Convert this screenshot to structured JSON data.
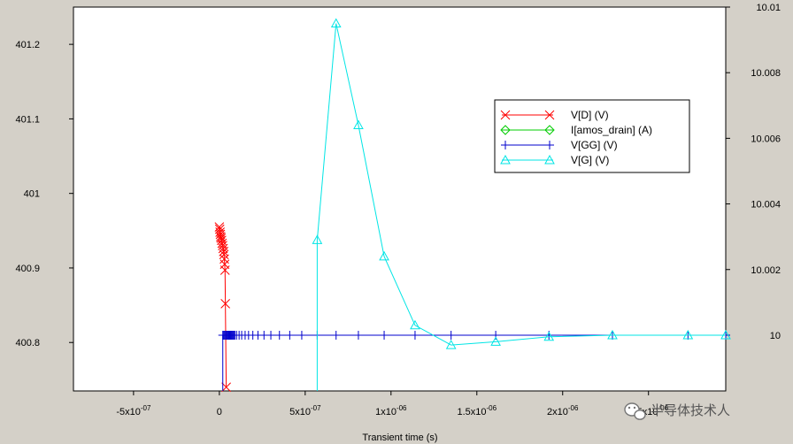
{
  "chart_data": {
    "type": "line",
    "title": "",
    "xlabel": "Transient time (s)",
    "ylabel": "",
    "xlim": [
      -8.5e-07,
      2.95e-06
    ],
    "ylim_left": [
      400.735,
      401.25
    ],
    "ylim_right": [
      9.9983,
      10.01
    ],
    "x_ticks": [
      -5e-07,
      0,
      5e-07,
      1e-06,
      1.5e-06,
      2e-06,
      2.5e-06
    ],
    "x_tick_labels": [
      {
        "mant": "-5x10",
        "exp": "-07"
      },
      {
        "mant": "0",
        "exp": ""
      },
      {
        "mant": "5x10",
        "exp": "-07"
      },
      {
        "mant": "1x10",
        "exp": "-06"
      },
      {
        "mant": "1.5x10",
        "exp": "-06"
      },
      {
        "mant": "2x10",
        "exp": "-06"
      },
      {
        "mant": "2.5x10",
        "exp": "-06"
      }
    ],
    "y_left_ticks": [
      400.8,
      400.9,
      401,
      401.1,
      401.2
    ],
    "y_left_tick_labels": [
      "400.8",
      "400.9",
      "401",
      "401.1",
      "401.2"
    ],
    "y_right_ticks": [
      10,
      10.002,
      10.004,
      10.006,
      10.008,
      10.01
    ],
    "y_right_tick_labels": [
      "10",
      "10.002",
      "10.004",
      "10.006",
      "10.008",
      "10.01"
    ],
    "grid": false,
    "legend_position": "top-right",
    "series": [
      {
        "name": "V[D] (V)",
        "color": "#ff0000",
        "marker": "x",
        "axis": "left",
        "points": [
          [
            0,
            400.955
          ],
          [
            2e-09,
            400.952
          ],
          [
            4e-09,
            400.948
          ],
          [
            6e-09,
            400.945
          ],
          [
            8e-09,
            400.942
          ],
          [
            1e-08,
            400.94
          ],
          [
            1.3e-08,
            400.937
          ],
          [
            1.6e-08,
            400.933
          ],
          [
            1.9e-08,
            400.93
          ],
          [
            2.2e-08,
            400.926
          ],
          [
            2.5e-08,
            400.922
          ],
          [
            2.7e-08,
            400.918
          ],
          [
            2.9e-08,
            400.912
          ],
          [
            3.1e-08,
            400.905
          ],
          [
            3.3e-08,
            400.897
          ],
          [
            3.5e-08,
            400.852
          ],
          [
            4e-08,
            400.74
          ]
        ]
      },
      {
        "name": "I[amos_drain] (A)",
        "color": "#00cc00",
        "marker": "diamond",
        "axis": "left",
        "points": []
      },
      {
        "name": "V[GG] (V)",
        "color": "#0000cc",
        "marker": "plus",
        "axis": "right",
        "points": [
          [
            2e-08,
            9.9983
          ],
          [
            2e-08,
            10
          ],
          [
            2.5e-08,
            10
          ],
          [
            3e-08,
            10
          ],
          [
            3.5e-08,
            10
          ],
          [
            4e-08,
            10
          ],
          [
            4.5e-08,
            10
          ],
          [
            5e-08,
            10
          ],
          [
            5.5e-08,
            10
          ],
          [
            6e-08,
            10
          ],
          [
            6.5e-08,
            10
          ],
          [
            7e-08,
            10
          ],
          [
            7.5e-08,
            10
          ],
          [
            8e-08,
            10
          ],
          [
            8.5e-08,
            10
          ],
          [
            9e-08,
            10
          ],
          [
            1e-07,
            10
          ],
          [
            1.15e-07,
            10
          ],
          [
            1.3e-07,
            10
          ],
          [
            1.5e-07,
            10
          ],
          [
            1.7e-07,
            10
          ],
          [
            1.95e-07,
            10
          ],
          [
            2.25e-07,
            10
          ],
          [
            2.6e-07,
            10
          ],
          [
            3e-07,
            10
          ],
          [
            3.5e-07,
            10
          ],
          [
            4.1e-07,
            10
          ],
          [
            4.8e-07,
            10
          ],
          [
            5.7e-07,
            10
          ],
          [
            6.8e-07,
            10
          ],
          [
            8.1e-07,
            10
          ],
          [
            9.6e-07,
            10
          ],
          [
            1.14e-06,
            10
          ],
          [
            1.35e-06,
            10
          ],
          [
            1.61e-06,
            10
          ],
          [
            1.92e-06,
            10
          ],
          [
            2.29e-06,
            10
          ],
          [
            2.73e-06,
            10
          ],
          [
            2.95e-06,
            10
          ]
        ]
      },
      {
        "name": "V[G] (V)",
        "color": "#00e5e5",
        "marker": "triangle",
        "axis": "right",
        "points": [
          [
            5.7e-07,
            9.9983
          ],
          [
            5.7e-07,
            10.0029
          ],
          [
            6.8e-07,
            10.0095
          ],
          [
            8.1e-07,
            10.0064
          ],
          [
            9.6e-07,
            10.0024
          ],
          [
            1.14e-06,
            10.0003
          ],
          [
            1.35e-06,
            9.9997
          ],
          [
            1.61e-06,
            9.9998
          ],
          [
            1.92e-06,
            9.99995
          ],
          [
            2.29e-06,
            10
          ],
          [
            2.73e-06,
            10
          ],
          [
            2.95e-06,
            10
          ]
        ]
      }
    ]
  },
  "watermark": {
    "text": "半导体技术人",
    "icon": "wechat-icon"
  }
}
